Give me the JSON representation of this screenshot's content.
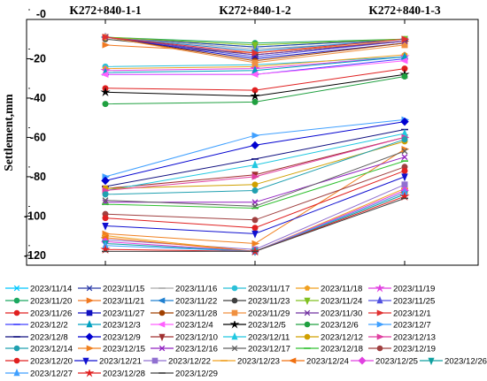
{
  "chart_data": {
    "type": "line",
    "categories": [
      "K272+840-1-1",
      "K272+840-1-2",
      "K272+840-1-3"
    ],
    "ylabel": "Settlement,mm",
    "xlabel": "",
    "ylim": [
      -125,
      0
    ],
    "yticks": [
      -20,
      -40,
      -60,
      -80,
      -100,
      -120
    ],
    "grid": false,
    "legend_position": "bottom",
    "series": [
      {
        "name": "2023/11/14",
        "color": "#00c8ff",
        "marker": "x",
        "values": [
          -9,
          -14,
          -10
        ]
      },
      {
        "name": "2023/11/15",
        "color": "#2a3aa8",
        "marker": "x",
        "values": [
          -9,
          -14,
          -10
        ]
      },
      {
        "name": "2023/11/16",
        "color": "#aaaaaa",
        "marker": "line",
        "values": [
          -9,
          -15,
          -11
        ]
      },
      {
        "name": "2023/11/17",
        "color": "#2bc0d8",
        "marker": "circle",
        "values": [
          -24,
          -23,
          -19
        ]
      },
      {
        "name": "2023/11/18",
        "color": "#f0a020",
        "marker": "pentagon",
        "values": [
          -25,
          -24,
          -18
        ]
      },
      {
        "name": "2023/11/19",
        "color": "#e040e0",
        "marker": "star",
        "values": [
          -26,
          -25,
          -19
        ]
      },
      {
        "name": "2023/11/20",
        "color": "#1ca860",
        "marker": "hexagon",
        "values": [
          -9,
          -12,
          -10
        ]
      },
      {
        "name": "2023/11/21",
        "color": "#f07820",
        "marker": "tri-right",
        "values": [
          -13,
          -17,
          -11
        ]
      },
      {
        "name": "2023/11/22",
        "color": "#2080d0",
        "marker": "tri-left",
        "values": [
          -9,
          -16,
          -10
        ]
      },
      {
        "name": "2023/11/23",
        "color": "#404040",
        "marker": "hexagon",
        "values": [
          -10,
          -18,
          -11
        ]
      },
      {
        "name": "2023/11/24",
        "color": "#80c020",
        "marker": "tri-down",
        "values": [
          -9,
          -13,
          -10
        ]
      },
      {
        "name": "2023/11/25",
        "color": "#5050e0",
        "marker": "tri-up",
        "values": [
          -9,
          -19,
          -11
        ]
      },
      {
        "name": "2023/11/26",
        "color": "#e02020",
        "marker": "circle",
        "values": [
          -35,
          -36,
          -25
        ]
      },
      {
        "name": "2023/11/27",
        "color": "#1010c0",
        "marker": "square",
        "values": [
          -9,
          -20,
          -12
        ]
      },
      {
        "name": "2023/11/28",
        "color": "#a04000",
        "marker": "circle",
        "values": [
          -9,
          -21,
          -12
        ]
      },
      {
        "name": "2023/11/29",
        "color": "#f09040",
        "marker": "square",
        "values": [
          -9,
          -22,
          -13
        ]
      },
      {
        "name": "2023/11/30",
        "color": "#7030a0",
        "marker": "x",
        "values": [
          -9,
          -18,
          -11
        ]
      },
      {
        "name": "2023/12/1",
        "color": "#e03030",
        "marker": "tri-right",
        "values": [
          -9,
          -17,
          -10
        ]
      },
      {
        "name": "2023/12/2",
        "color": "#4040ff",
        "marker": "line",
        "values": [
          -28,
          -28,
          -20
        ]
      },
      {
        "name": "2023/12/3",
        "color": "#00a0c0",
        "marker": "tri-up",
        "values": [
          -27,
          -26,
          -19
        ]
      },
      {
        "name": "2023/12/4",
        "color": "#ff60ff",
        "marker": "tri-left",
        "values": [
          -28,
          -28,
          -21
        ]
      },
      {
        "name": "2023/12/5",
        "color": "#000000",
        "marker": "star",
        "values": [
          -37,
          -39,
          -28
        ]
      },
      {
        "name": "2023/12/6",
        "color": "#20a040",
        "marker": "circle",
        "values": [
          -43,
          -42,
          -29
        ]
      },
      {
        "name": "2023/12/7",
        "color": "#40a0ff",
        "marker": "tri-right",
        "values": [
          -80,
          -59,
          -51
        ]
      },
      {
        "name": "2023/12/8",
        "color": "#101080",
        "marker": "line",
        "values": [
          -85,
          -71,
          -56
        ]
      },
      {
        "name": "2023/12/9",
        "color": "#0000d0",
        "marker": "diamond",
        "values": [
          -82,
          -64,
          -52
        ]
      },
      {
        "name": "2023/12/10",
        "color": "#a03030",
        "marker": "tri-down",
        "values": [
          -86,
          -79,
          -60
        ]
      },
      {
        "name": "2023/12/11",
        "color": "#20c8e0",
        "marker": "tri-up",
        "values": [
          -87,
          -74,
          -58
        ]
      },
      {
        "name": "2023/12/12",
        "color": "#d0a000",
        "marker": "circle",
        "values": [
          -86,
          -84,
          -62
        ]
      },
      {
        "name": "2023/12/13",
        "color": "#e040a0",
        "marker": "tri-right",
        "values": [
          -87,
          -80,
          -60
        ]
      },
      {
        "name": "2023/12/14",
        "color": "#20a0b0",
        "marker": "hexagon",
        "values": [
          -89,
          -87,
          -61
        ]
      },
      {
        "name": "2023/12/15",
        "color": "#f08020",
        "marker": "tri-right",
        "values": [
          -109,
          -114,
          -66
        ]
      },
      {
        "name": "2023/12/16",
        "color": "#9020c0",
        "marker": "x",
        "values": [
          -93,
          -93,
          -70
        ]
      },
      {
        "name": "2023/12/17",
        "color": "#606060",
        "marker": "x",
        "values": [
          -92,
          -95,
          -67
        ]
      },
      {
        "name": "2023/12/18",
        "color": "#30c030",
        "marker": "line",
        "values": [
          -94,
          -96,
          -72
        ]
      },
      {
        "name": "2023/12/19",
        "color": "#a04040",
        "marker": "hexagon",
        "values": [
          -99,
          -102,
          -75
        ]
      },
      {
        "name": "2023/12/20",
        "color": "#e02020",
        "marker": "circle",
        "values": [
          -101,
          -106,
          -77
        ]
      },
      {
        "name": "2023/12/21",
        "color": "#1010d0",
        "marker": "tri-down",
        "values": [
          -105,
          -109,
          -80
        ]
      },
      {
        "name": "2023/12/22",
        "color": "#9070d0",
        "marker": "square",
        "values": [
          -112,
          -117,
          -84
        ]
      },
      {
        "name": "2023/12/23",
        "color": "#f0a020",
        "marker": "line",
        "values": [
          -110,
          -118,
          -86
        ]
      },
      {
        "name": "2023/12/24",
        "color": "#f07010",
        "marker": "tri-left",
        "values": [
          -111,
          -118,
          -88
        ]
      },
      {
        "name": "2023/12/25",
        "color": "#e040e0",
        "marker": "diamond",
        "values": [
          -113,
          -118,
          -87
        ]
      },
      {
        "name": "2023/12/26",
        "color": "#10a0a0",
        "marker": "tri-down",
        "values": [
          -114,
          -118,
          -89
        ]
      },
      {
        "name": "2023/12/27",
        "color": "#40a0ff",
        "marker": "tri-up",
        "values": [
          -115,
          -118,
          -88
        ]
      },
      {
        "name": "2023/12/28",
        "color": "#e02020",
        "marker": "star",
        "values": [
          -117,
          -118,
          -90
        ]
      },
      {
        "name": "2023/12/29",
        "color": "#404040",
        "marker": "line",
        "values": [
          -118,
          -118,
          -91
        ]
      }
    ]
  }
}
